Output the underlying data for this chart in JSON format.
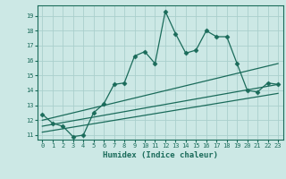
{
  "title": "",
  "xlabel": "Humidex (Indice chaleur)",
  "bg_color": "#cce8e5",
  "grid_color": "#aacfcc",
  "line_color": "#1a6b5a",
  "xlim": [
    -0.5,
    23.5
  ],
  "ylim": [
    10.7,
    19.7
  ],
  "yticks": [
    11,
    12,
    13,
    14,
    15,
    16,
    17,
    18,
    19
  ],
  "xticks": [
    0,
    1,
    2,
    3,
    4,
    5,
    6,
    7,
    8,
    9,
    10,
    11,
    12,
    13,
    14,
    15,
    16,
    17,
    18,
    19,
    20,
    21,
    22,
    23
  ],
  "main_x": [
    0,
    1,
    2,
    3,
    4,
    5,
    6,
    7,
    8,
    9,
    10,
    11,
    12,
    13,
    14,
    15,
    16,
    17,
    18,
    19,
    20,
    21,
    22,
    23
  ],
  "main_y": [
    12.4,
    11.8,
    11.6,
    10.9,
    11.0,
    12.5,
    13.1,
    14.4,
    14.5,
    16.3,
    16.6,
    15.8,
    19.3,
    17.8,
    16.5,
    16.7,
    18.0,
    17.6,
    17.6,
    15.8,
    14.0,
    13.9,
    14.5,
    14.4
  ],
  "line1_x": [
    0,
    23
  ],
  "line1_y": [
    12.0,
    15.8
  ],
  "line2_x": [
    0,
    23
  ],
  "line2_y": [
    11.6,
    14.4
  ],
  "line3_x": [
    0,
    23
  ],
  "line3_y": [
    11.2,
    13.8
  ]
}
